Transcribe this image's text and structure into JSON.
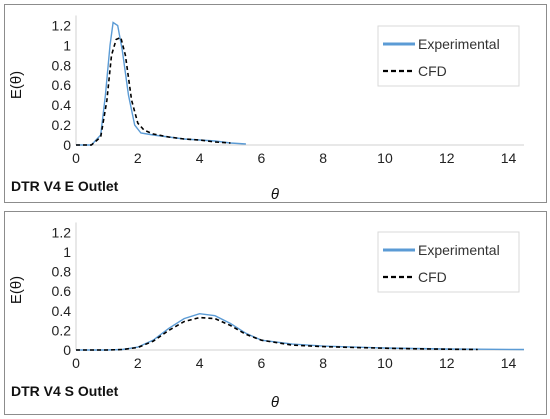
{
  "chart_data": [
    {
      "type": "line",
      "title": "",
      "panel_label": "DTR V4 E Outlet",
      "xlabel": "θ",
      "ylabel": "E(θ)",
      "xlim": [
        0,
        14.5
      ],
      "ylim": [
        0,
        1.3
      ],
      "xticks": [
        0,
        2,
        4,
        6,
        8,
        10,
        12,
        14
      ],
      "yticks": [
        0,
        0.2,
        0.4,
        0.6,
        0.8,
        1,
        1.2
      ],
      "grid": false,
      "legend_position": "top-right",
      "series": [
        {
          "name": "Experimental",
          "color": "#5b9bd5",
          "style": "solid",
          "x": [
            0,
            0.5,
            0.8,
            0.95,
            1.1,
            1.2,
            1.35,
            1.5,
            1.7,
            1.9,
            2.1,
            2.5,
            3,
            3.5,
            4,
            4.5,
            5,
            5.5
          ],
          "y": [
            0,
            0,
            0.1,
            0.5,
            1.0,
            1.23,
            1.2,
            0.95,
            0.5,
            0.2,
            0.12,
            0.1,
            0.08,
            0.06,
            0.05,
            0.04,
            0.02,
            0.01
          ]
        },
        {
          "name": "CFD",
          "color": "#000000",
          "style": "dashed",
          "x": [
            0,
            0.5,
            0.8,
            1.0,
            1.15,
            1.3,
            1.45,
            1.6,
            1.8,
            2.0,
            2.2,
            2.5,
            3,
            3.5,
            4,
            4.5,
            5
          ],
          "y": [
            0,
            0,
            0.08,
            0.45,
            0.9,
            1.06,
            1.08,
            0.9,
            0.45,
            0.22,
            0.15,
            0.11,
            0.08,
            0.06,
            0.05,
            0.03,
            0.02
          ]
        }
      ]
    },
    {
      "type": "line",
      "title": "",
      "panel_label": "DTR V4 S Outlet",
      "xlabel": "θ",
      "ylabel": "E(θ)",
      "xlim": [
        0,
        14.5
      ],
      "ylim": [
        0,
        1.3
      ],
      "xticks": [
        0,
        2,
        4,
        6,
        8,
        10,
        12,
        14
      ],
      "yticks": [
        0,
        0.2,
        0.4,
        0.6,
        0.8,
        1,
        1.2
      ],
      "grid": false,
      "legend_position": "top-right",
      "series": [
        {
          "name": "Experimental",
          "color": "#5b9bd5",
          "style": "solid",
          "x": [
            0,
            1,
            1.5,
            2,
            2.5,
            3,
            3.5,
            4,
            4.5,
            5,
            5.5,
            6,
            7,
            8,
            9,
            10,
            11,
            12,
            13,
            14.5
          ],
          "y": [
            0,
            0,
            0.005,
            0.03,
            0.1,
            0.22,
            0.32,
            0.37,
            0.35,
            0.27,
            0.17,
            0.1,
            0.06,
            0.04,
            0.03,
            0.02,
            0.015,
            0.01,
            0.008,
            0.005
          ]
        },
        {
          "name": "CFD",
          "color": "#000000",
          "style": "dashed",
          "x": [
            0,
            1,
            1.5,
            2,
            2.5,
            3,
            3.5,
            4,
            4.5,
            5,
            5.5,
            6,
            7,
            8,
            9,
            10,
            11,
            12,
            13
          ],
          "y": [
            0,
            0,
            0.005,
            0.025,
            0.09,
            0.2,
            0.29,
            0.33,
            0.32,
            0.25,
            0.16,
            0.1,
            0.05,
            0.035,
            0.025,
            0.018,
            0.012,
            0.008,
            0.005
          ]
        }
      ]
    }
  ]
}
